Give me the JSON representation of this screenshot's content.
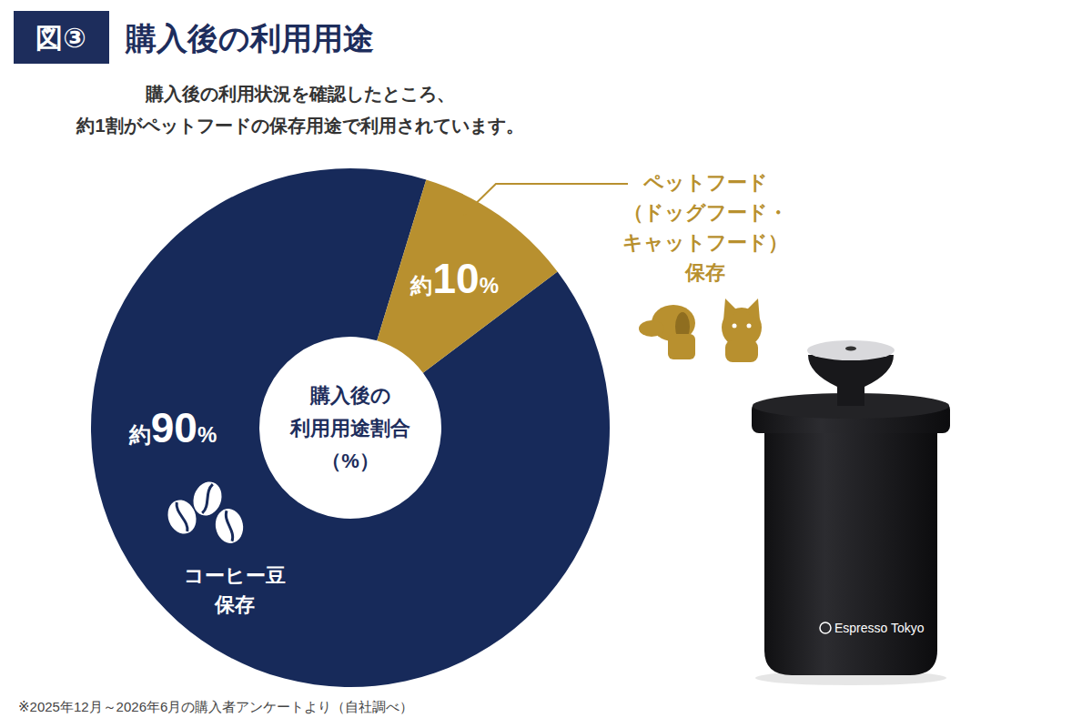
{
  "chart_data": {
    "type": "pie",
    "figure_label": "図③",
    "title": "購入後の利用用途",
    "subtitle": [
      "購入後の利用状況を確認したところ、",
      "約1割がペットフードの保存用途で利用されています。"
    ],
    "center_label": [
      "購入後の",
      "利用用途割合",
      "（%）"
    ],
    "categories": [
      "コーヒー豆\n保存",
      "ペットフード\n（ドッグフード・\nキャットフード）\n保存"
    ],
    "values": [
      90,
      10
    ],
    "value_labels": [
      "約90%",
      "約10%"
    ],
    "data_labels": true,
    "colors": [
      "#172a5a",
      "#b8902f"
    ],
    "note": "※2025年12月～2026年6月の購入者アンケートより（自社調べ）",
    "product_label": "Espresso Tokyo"
  }
}
